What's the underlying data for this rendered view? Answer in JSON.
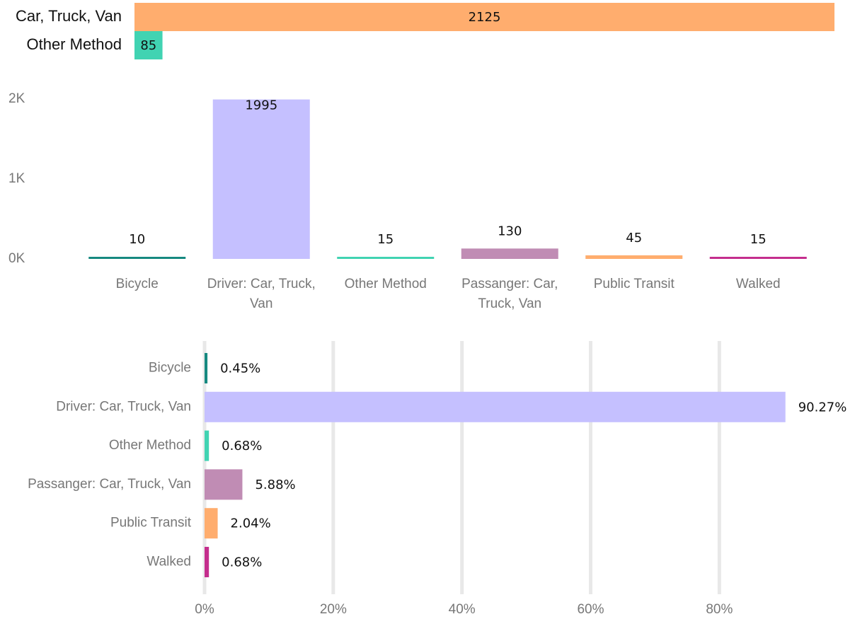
{
  "chart_data": [
    {
      "type": "bar",
      "orientation": "horizontal",
      "categories": [
        "Car, Truck, Van",
        "Other Method"
      ],
      "values": [
        2125,
        85
      ],
      "colors": [
        "#FFAD6E",
        "#41D3B2"
      ]
    },
    {
      "type": "bar",
      "orientation": "vertical",
      "categories": [
        "Bicycle",
        "Driver: Car, Truck, Van",
        "Other Method",
        "Passanger: Car, Truck, Van",
        "Public Transit",
        "Walked"
      ],
      "values": [
        10,
        1995,
        15,
        130,
        45,
        15
      ],
      "colors": [
        "#168980",
        "#C5C0FF",
        "#41D3B2",
        "#C08CB4",
        "#FFAD6E",
        "#C42E8D"
      ],
      "ylim": [
        0,
        2000
      ],
      "yticks": [
        {
          "value": 0,
          "label": "0K"
        },
        {
          "value": 1000,
          "label": "1K"
        },
        {
          "value": 2000,
          "label": "2K"
        }
      ]
    },
    {
      "type": "bar",
      "orientation": "horizontal",
      "categories": [
        "Bicycle",
        "Driver: Car, Truck, Van",
        "Other Method",
        "Passanger: Car, Truck, Van",
        "Public Transit",
        "Walked"
      ],
      "values": [
        0.45,
        90.27,
        0.68,
        5.88,
        2.04,
        0.68
      ],
      "value_labels": [
        "0.45%",
        "90.27%",
        "0.68%",
        "5.88%",
        "2.04%",
        "0.68%"
      ],
      "colors": [
        "#168980",
        "#C5C0FF",
        "#41D3B2",
        "#C08CB4",
        "#FFAD6E",
        "#C42E8D"
      ],
      "xlim": [
        0,
        98
      ],
      "xticks": [
        {
          "value": 0,
          "label": "0%"
        },
        {
          "value": 20,
          "label": "20%"
        },
        {
          "value": 40,
          "label": "40%"
        },
        {
          "value": 60,
          "label": "60%"
        },
        {
          "value": 80,
          "label": "80%"
        }
      ],
      "grid": true
    }
  ]
}
